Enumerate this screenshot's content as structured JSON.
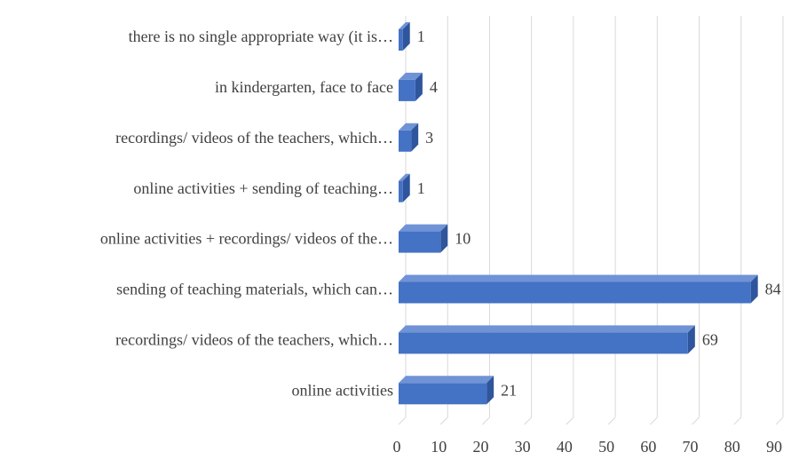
{
  "chart_data": {
    "type": "bar3d_horizontal",
    "categories": [
      "there is no single appropriate way (it is…",
      "in kindergarten, face to face",
      "recordings/ videos of the teachers, which…",
      "online activities + sending of teaching…",
      "online activities + recordings/ videos of the…",
      "sending of teaching materials, which can…",
      "recordings/ videos of the teachers, which…",
      "online activities"
    ],
    "values": [
      1,
      4,
      3,
      1,
      10,
      84,
      69,
      21
    ],
    "color": "#4472c4",
    "xlim": [
      0,
      90
    ],
    "xticks": [
      0,
      10,
      20,
      30,
      40,
      50,
      60,
      70,
      80,
      90
    ],
    "grid": true
  }
}
